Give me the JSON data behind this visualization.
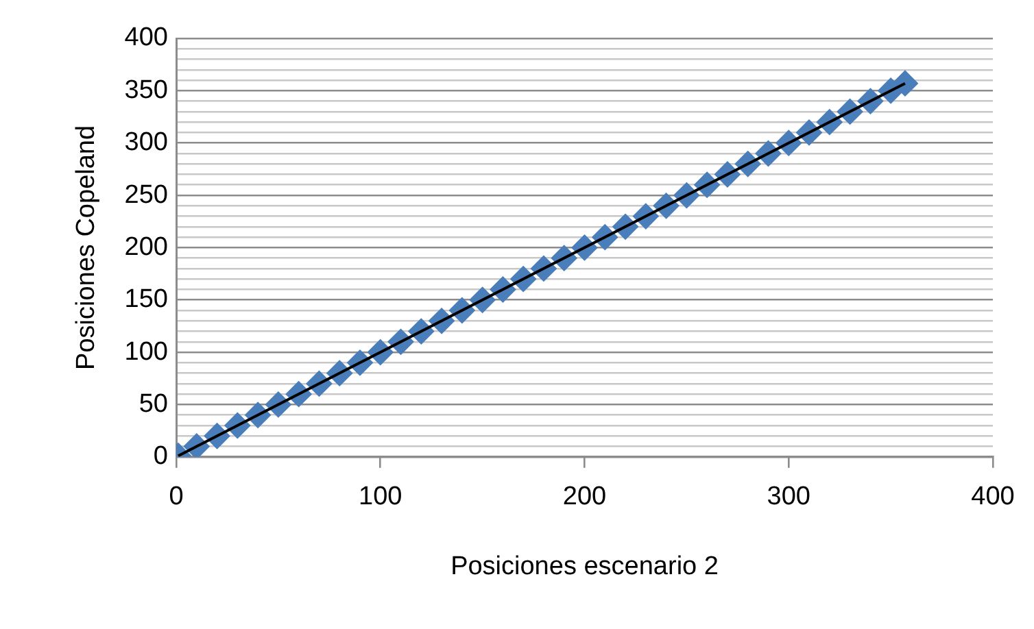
{
  "chart_data": {
    "type": "scatter",
    "xlabel": "Posiciones escenario 2",
    "ylabel": "Posiciones Copeland",
    "grid": "y",
    "legend": false,
    "xlim": [
      0,
      400
    ],
    "xticks": [
      0,
      100,
      200,
      300,
      400
    ],
    "ylim": [
      0,
      400
    ],
    "yticks": [
      0,
      {
        "value": 10,
        "label": null
      },
      {
        "value": 20,
        "label": null
      },
      {
        "value": 30,
        "label": null
      },
      {
        "value": 40,
        "label": null
      },
      50,
      {
        "value": 60,
        "label": null
      },
      {
        "value": 70,
        "label": null
      },
      {
        "value": 80,
        "label": null
      },
      {
        "value": 90,
        "label": null
      },
      100,
      {
        "value": 110,
        "label": null
      },
      {
        "value": 120,
        "label": null
      },
      {
        "value": 130,
        "label": null
      },
      {
        "value": 140,
        "label": null
      },
      150,
      {
        "value": 160,
        "label": null
      },
      {
        "value": 170,
        "label": null
      },
      {
        "value": 180,
        "label": null
      },
      {
        "value": 190,
        "label": null
      },
      200,
      {
        "value": 210,
        "label": null
      },
      {
        "value": 220,
        "label": null
      },
      {
        "value": 230,
        "label": null
      },
      {
        "value": 240,
        "label": null
      },
      250,
      {
        "value": 260,
        "label": null
      },
      {
        "value": 270,
        "label": null
      },
      {
        "value": 280,
        "label": null
      },
      {
        "value": 290,
        "label": null
      },
      300,
      {
        "value": 310,
        "label": null
      },
      {
        "value": 320,
        "label": null
      },
      {
        "value": 330,
        "label": null
      },
      {
        "value": 340,
        "label": null
      },
      350,
      {
        "value": 360,
        "label": null
      },
      {
        "value": 370,
        "label": null
      },
      {
        "value": 380,
        "label": null
      },
      {
        "value": 390,
        "label": null
      },
      400
    ],
    "series": [
      {
        "marker": "diamond",
        "color": "#4a7ebb",
        "x": [
          1,
          10,
          20,
          30,
          40,
          50,
          60,
          70,
          80,
          90,
          100,
          110,
          120,
          130,
          140,
          150,
          160,
          170,
          180,
          190,
          200,
          210,
          220,
          230,
          240,
          250,
          260,
          270,
          280,
          290,
          300,
          310,
          320,
          330,
          340,
          350,
          357
        ],
        "values": [
          1,
          10,
          20,
          30,
          40,
          50,
          60,
          70,
          80,
          90,
          100,
          110,
          120,
          130,
          140,
          150,
          160,
          170,
          180,
          190,
          200,
          210,
          220,
          230,
          240,
          250,
          260,
          270,
          280,
          290,
          300,
          310,
          320,
          330,
          340,
          350,
          357
        ]
      },
      {
        "type": "line",
        "color": "#000000",
        "x": [
          1,
          357
        ],
        "values": [
          1,
          357
        ]
      }
    ]
  }
}
